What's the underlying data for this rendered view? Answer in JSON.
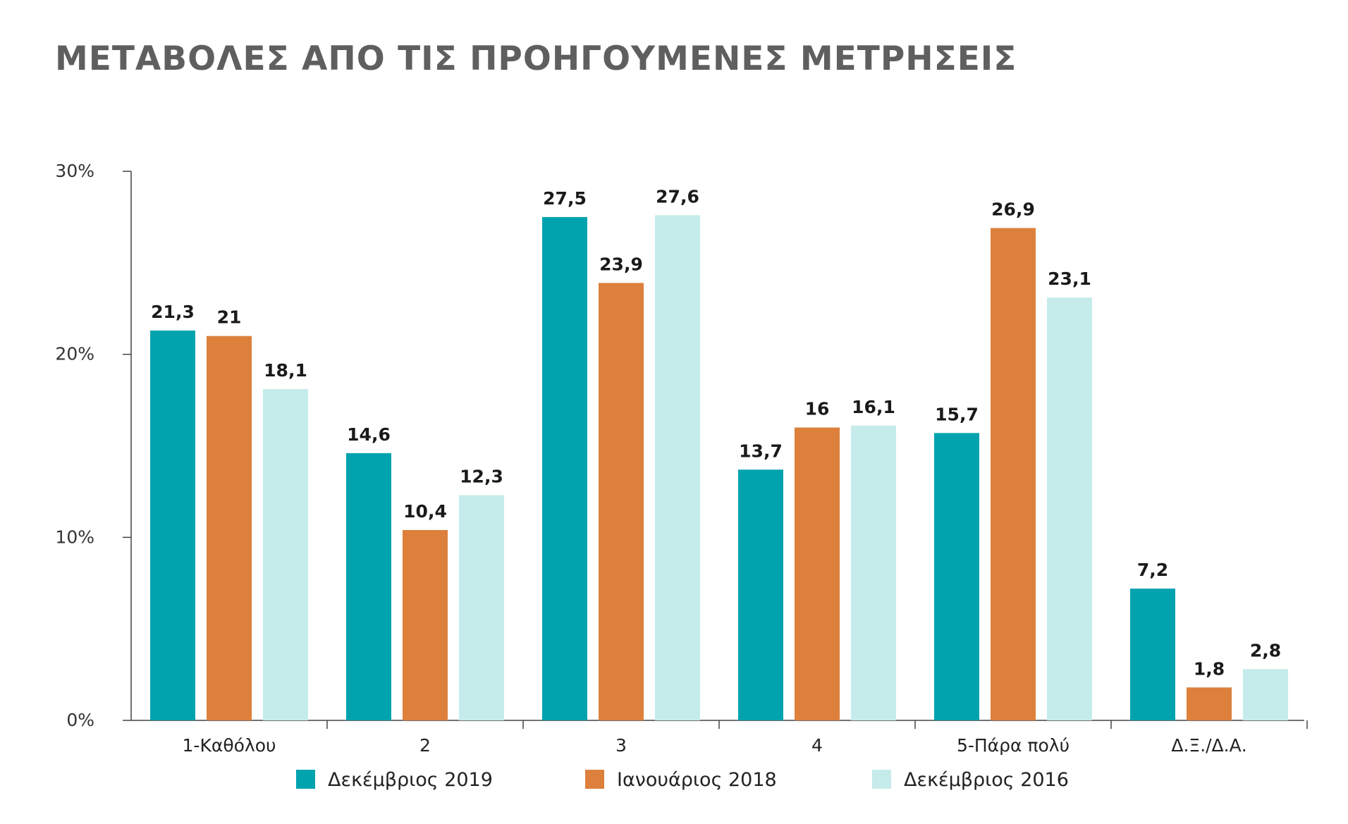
{
  "chart_data": {
    "type": "bar",
    "title": "ΜΕΤΑΒΟΛΕΣ ΑΠΟ ΤΙΣ ΠΡΟΗΓΟΥΜΕΝΕΣ ΜΕΤΡΗΣΕΙΣ",
    "categories": [
      "1-Καθόλου",
      "2",
      "3",
      "4",
      "5-Πάρα πολύ",
      "Δ.Ξ./Δ.Α."
    ],
    "series": [
      {
        "name": "Δεκέμβριος 2019",
        "color": "#00a3ae",
        "values": [
          21.3,
          14.6,
          27.5,
          13.7,
          15.7,
          7.2
        ],
        "labels": [
          "21,3",
          "14,6",
          "27,5",
          "13,7",
          "15,7",
          "7,2"
        ]
      },
      {
        "name": "Ιανουάριος 2018",
        "color": "#dc803c",
        "values": [
          21,
          10.4,
          23.9,
          16,
          26.9,
          1.8
        ],
        "labels": [
          "21",
          "10,4",
          "23,9",
          "16",
          "26,9",
          "1,8"
        ]
      },
      {
        "name": "Δεκέμβριος 2016",
        "color": "#c5ebea",
        "values": [
          18.1,
          12.3,
          27.6,
          16.1,
          23.1,
          2.8
        ],
        "labels": [
          "18,1",
          "12,3",
          "27,6",
          "16,1",
          "23,1",
          "2,8"
        ]
      }
    ],
    "yticks": [
      0,
      10,
      20,
      30
    ],
    "ytick_labels": [
      "0%",
      "10%",
      "20%",
      "30%"
    ],
    "ylim": [
      0,
      30
    ],
    "xlabel": "",
    "ylabel": "",
    "grid": false,
    "legend_position": "bottom"
  }
}
